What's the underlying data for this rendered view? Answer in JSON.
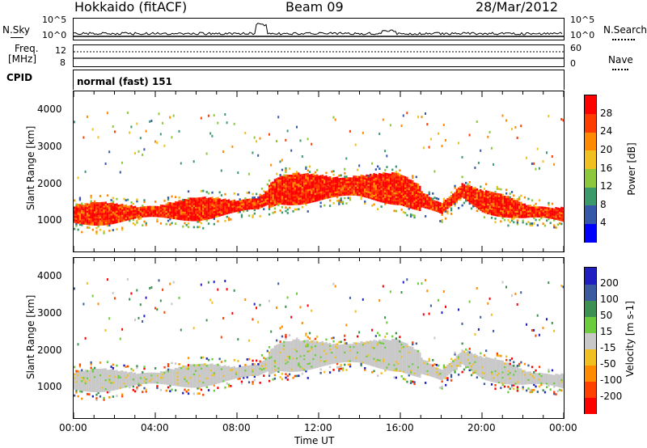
{
  "header": {
    "station": "Hokkaido (fitACF)",
    "beam": "Beam 09",
    "date": "28/Mar/2012"
  },
  "top_panels": {
    "nsky_label": "N.Sky",
    "nsky_ticks": [
      "10^5",
      "10^0"
    ],
    "nsearch_label": "N.Search",
    "freq_label_1": "Freq.",
    "freq_label_2": "[MHz]",
    "freq_ticks": [
      "12",
      "8"
    ],
    "nave_label": "Nave",
    "nave_ticks": [
      "60",
      "0"
    ],
    "cpid_label": "CPID",
    "cpid_value": "normal (fast) 151"
  },
  "chart_data": [
    {
      "type": "heatmap",
      "name": "power",
      "xlabel": "",
      "ylabel": "Slant Range [km]",
      "ylim": [
        180,
        4500
      ],
      "xlim": [
        0,
        24
      ],
      "yticks": [
        "1000",
        "2000",
        "3000",
        "4000"
      ],
      "colorbar_label": "Power [dB]",
      "colorbar_ticks": [
        "4",
        "8",
        "12",
        "16",
        "20",
        "24",
        "28"
      ],
      "colorbar_colors": [
        "#0000ff",
        "#3558a8",
        "#3c9a6a",
        "#8cc83c",
        "#f0c020",
        "#ff8a00",
        "#ff3c00",
        "#ff0000"
      ],
      "main_band": [
        {
          "x": 0,
          "y": 1150
        },
        {
          "x": 2,
          "y": 1180
        },
        {
          "x": 4,
          "y": 1230
        },
        {
          "x": 6,
          "y": 1290
        },
        {
          "x": 8,
          "y": 1380
        },
        {
          "x": 9,
          "y": 1450
        },
        {
          "x": 10,
          "y": 1800
        },
        {
          "x": 12,
          "y": 1870
        },
        {
          "x": 14,
          "y": 1930
        },
        {
          "x": 16,
          "y": 1820
        },
        {
          "x": 18,
          "y": 1300
        },
        {
          "x": 19,
          "y": 1800
        },
        {
          "x": 20,
          "y": 1500
        },
        {
          "x": 22,
          "y": 1250
        },
        {
          "x": 24,
          "y": 1150
        }
      ]
    },
    {
      "type": "heatmap",
      "name": "velocity",
      "xlabel": "Time UT",
      "ylabel": "Slant Range [km]",
      "ylim": [
        180,
        4500
      ],
      "xlim": [
        0,
        24
      ],
      "xticks": [
        "00:00",
        "04:00",
        "08:00",
        "12:00",
        "16:00",
        "20:00",
        "00:00"
      ],
      "yticks": [
        "1000",
        "2000",
        "3000",
        "4000"
      ],
      "colorbar_label": "Velocity [m s-1]",
      "colorbar_ticks": [
        "200",
        "100",
        "50",
        "15",
        "-15",
        "-50",
        "-100",
        "-200"
      ],
      "colorbar_colors": [
        "#2020c0",
        "#3c5aa0",
        "#3c9050",
        "#6ccc3c",
        "#c8c8c8",
        "#f0c020",
        "#ff8c00",
        "#ff4000",
        "#ff0000"
      ]
    }
  ]
}
